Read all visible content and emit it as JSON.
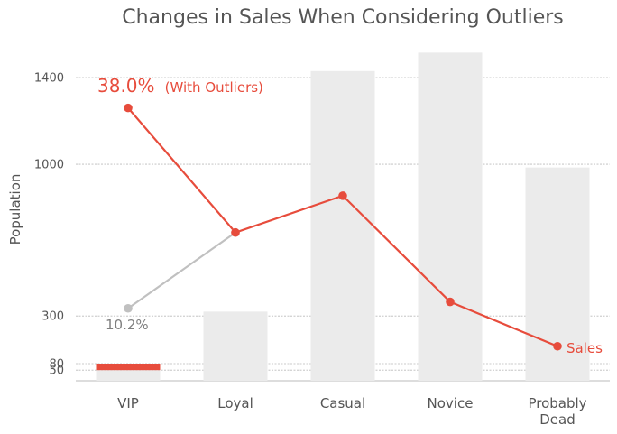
{
  "chart_data": {
    "type": "bar",
    "title": "Changes in Sales When Considering Outliers",
    "xlabel": "",
    "ylabel": "Population",
    "categories": [
      "VIP",
      "Loyal",
      "Casual",
      "Novice",
      "Probably Dead"
    ],
    "yticks": [
      50,
      80,
      300,
      1000,
      1400
    ],
    "ylim": [
      0,
      1510
    ],
    "grid": "horizontal",
    "bars": {
      "values": [
        50,
        320,
        1430,
        1515,
        985
      ],
      "color": "#ebebeb"
    },
    "highlight": {
      "category": "VIP",
      "range": [
        50,
        80
      ],
      "color": "#e74c3c"
    },
    "series": [
      {
        "name": "",
        "values": [
          335,
          685,
          null,
          null,
          null
        ],
        "color": "#c0c0c0"
      },
      {
        "name": "Sales",
        "values": [
          1260,
          685,
          855,
          365,
          160
        ],
        "color": "#e74c3c"
      }
    ],
    "annotations": [
      {
        "text": "38.0%",
        "color": "#e74c3c"
      },
      {
        "text": "(With Outliers)",
        "color": "#e74c3c"
      },
      {
        "text": "10.2%",
        "color": "#7f7f7f"
      }
    ]
  }
}
